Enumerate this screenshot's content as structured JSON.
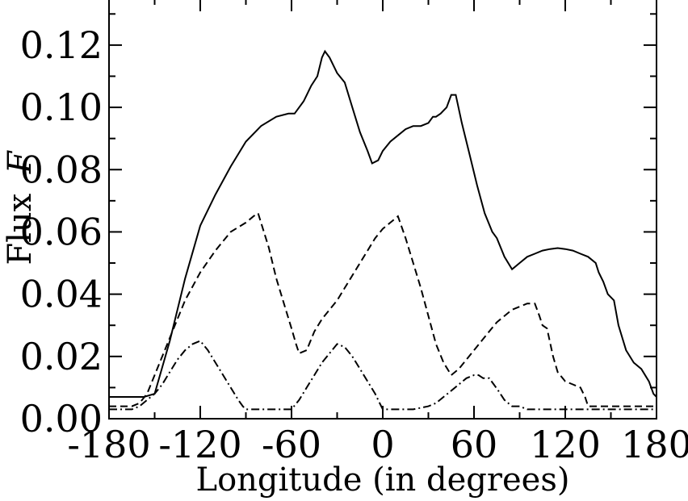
{
  "chart_data": {
    "type": "line",
    "xlabel": "Longitude (in degrees)",
    "ylabel": "Flux",
    "ylabel_symbol": "F",
    "xlim": [
      -180,
      180
    ],
    "ylim": [
      0.0,
      0.135
    ],
    "x_ticks": [
      -180,
      -120,
      -60,
      0,
      60,
      120,
      180
    ],
    "x_tick_labels": [
      "-180",
      "-120",
      "-60",
      "0",
      "60",
      "120",
      "180"
    ],
    "y_ticks": [
      0.0,
      0.02,
      0.04,
      0.06,
      0.08,
      0.1,
      0.12
    ],
    "y_tick_labels": [
      "0.00",
      "0.02",
      "0.04",
      "0.06",
      "0.08",
      "0.10",
      "0.12"
    ],
    "grid": false,
    "series": [
      {
        "style": "solid",
        "x": [
          -180,
          -165,
          -157,
          -150,
          -140,
          -130,
          -120,
          -110,
          -100,
          -90,
          -80,
          -70,
          -62,
          -58,
          -52,
          -47,
          -43,
          -40,
          -38,
          -35,
          -30,
          -25,
          -20,
          -15,
          -10,
          -7,
          -3,
          0,
          5,
          10,
          15,
          20,
          25,
          30,
          33,
          35,
          38,
          42,
          45,
          48,
          52,
          57,
          62,
          67,
          72,
          75,
          80,
          85,
          90,
          95,
          100,
          105,
          110,
          115,
          120,
          125,
          130,
          135,
          140,
          142,
          145,
          148,
          152,
          155,
          160,
          165,
          170,
          175,
          178,
          180
        ],
        "y": [
          0.007,
          0.007,
          0.007,
          0.008,
          0.025,
          0.045,
          0.062,
          0.072,
          0.081,
          0.089,
          0.094,
          0.097,
          0.098,
          0.098,
          0.102,
          0.107,
          0.11,
          0.116,
          0.118,
          0.116,
          0.111,
          0.108,
          0.1,
          0.092,
          0.086,
          0.082,
          0.083,
          0.086,
          0.089,
          0.091,
          0.093,
          0.094,
          0.094,
          0.095,
          0.097,
          0.097,
          0.098,
          0.1,
          0.104,
          0.104,
          0.095,
          0.085,
          0.075,
          0.066,
          0.06,
          0.058,
          0.052,
          0.048,
          0.05,
          0.052,
          0.053,
          0.054,
          0.0545,
          0.0548,
          0.0545,
          0.054,
          0.053,
          0.052,
          0.05,
          0.047,
          0.044,
          0.04,
          0.038,
          0.03,
          0.022,
          0.018,
          0.016,
          0.012,
          0.008,
          0.007
        ]
      },
      {
        "style": "dashed",
        "x": [
          -180,
          -165,
          -160,
          -155,
          -150,
          -140,
          -130,
          -120,
          -110,
          -100,
          -90,
          -85,
          -82,
          -75,
          -70,
          -65,
          -60,
          -57,
          -55,
          -50,
          -45,
          -40,
          -35,
          -30,
          -25,
          -20,
          -15,
          -10,
          -5,
          0,
          5,
          10,
          15,
          20,
          25,
          30,
          35,
          40,
          45,
          50,
          55,
          60,
          65,
          70,
          75,
          80,
          85,
          90,
          95,
          100,
          103,
          105,
          108,
          112,
          115,
          120,
          125,
          130,
          133,
          135,
          140,
          150,
          160,
          170,
          180
        ],
        "y": [
          0.004,
          0.004,
          0.005,
          0.008,
          0.014,
          0.026,
          0.038,
          0.047,
          0.054,
          0.06,
          0.063,
          0.065,
          0.066,
          0.055,
          0.045,
          0.037,
          0.029,
          0.024,
          0.021,
          0.022,
          0.028,
          0.032,
          0.035,
          0.038,
          0.042,
          0.046,
          0.05,
          0.054,
          0.058,
          0.061,
          0.063,
          0.065,
          0.058,
          0.05,
          0.042,
          0.033,
          0.024,
          0.018,
          0.014,
          0.016,
          0.019,
          0.022,
          0.025,
          0.028,
          0.031,
          0.033,
          0.035,
          0.036,
          0.037,
          0.037,
          0.033,
          0.03,
          0.029,
          0.02,
          0.015,
          0.012,
          0.011,
          0.01,
          0.007,
          0.004,
          0.004,
          0.004,
          0.004,
          0.004,
          0.004
        ]
      },
      {
        "style": "dash-dot",
        "x": [
          -180,
          -165,
          -160,
          -155,
          -150,
          -145,
          -140,
          -135,
          -130,
          -125,
          -120,
          -115,
          -110,
          -105,
          -100,
          -95,
          -92,
          -90,
          -80,
          -70,
          -60,
          -55,
          -50,
          -45,
          -40,
          -35,
          -30,
          -25,
          -20,
          -15,
          -10,
          -5,
          -2,
          0,
          10,
          20,
          30,
          35,
          40,
          45,
          50,
          55,
          60,
          63,
          66,
          70,
          73,
          76,
          80,
          85,
          90,
          95,
          100,
          110,
          120,
          130,
          140,
          150,
          160,
          170,
          180
        ],
        "y": [
          0.003,
          0.003,
          0.004,
          0.006,
          0.008,
          0.011,
          0.015,
          0.019,
          0.022,
          0.024,
          0.025,
          0.022,
          0.018,
          0.014,
          0.01,
          0.006,
          0.004,
          0.003,
          0.003,
          0.003,
          0.003,
          0.006,
          0.01,
          0.014,
          0.018,
          0.021,
          0.024,
          0.023,
          0.02,
          0.016,
          0.012,
          0.008,
          0.005,
          0.003,
          0.003,
          0.003,
          0.004,
          0.005,
          0.007,
          0.009,
          0.011,
          0.013,
          0.014,
          0.014,
          0.013,
          0.013,
          0.011,
          0.009,
          0.006,
          0.004,
          0.004,
          0.003,
          0.003,
          0.003,
          0.003,
          0.003,
          0.003,
          0.003,
          0.003,
          0.003,
          0.003
        ]
      }
    ]
  }
}
